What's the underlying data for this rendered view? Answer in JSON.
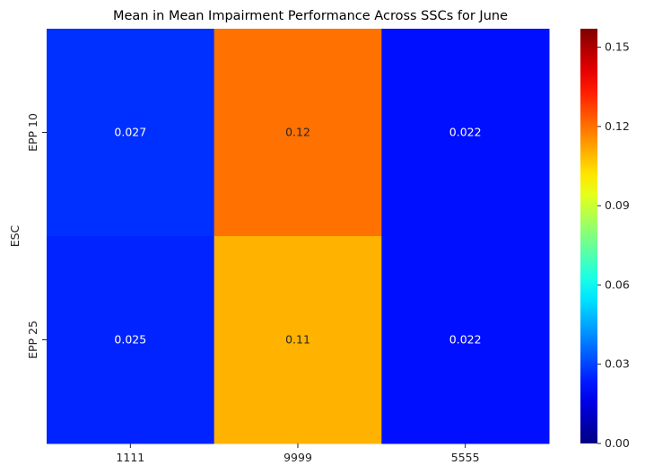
{
  "chart_data": {
    "type": "heatmap",
    "title": "Mean in Mean Impairment Performance Across SSCs for June",
    "xlabel": "",
    "ylabel": "ESC",
    "x_categories": [
      "1111",
      "9999",
      "5555"
    ],
    "y_categories": [
      "EPP 10",
      "EPP 25"
    ],
    "values": [
      [
        0.027,
        0.12,
        0.022
      ],
      [
        0.025,
        0.11,
        0.022
      ]
    ],
    "cell_labels": [
      [
        "0.027",
        "0.12",
        "0.022"
      ],
      [
        "0.025",
        "0.11",
        "0.022"
      ]
    ],
    "colormap": "jet",
    "colorbar": {
      "min": 0.0,
      "max": 0.157,
      "ticks": [
        0.0,
        0.03,
        0.06,
        0.09,
        0.12,
        0.15
      ],
      "tick_labels": [
        "0.00",
        "0.03",
        "0.06",
        "0.09",
        "0.12",
        "0.15"
      ]
    },
    "grid": false,
    "legend": "colorbar-right"
  }
}
